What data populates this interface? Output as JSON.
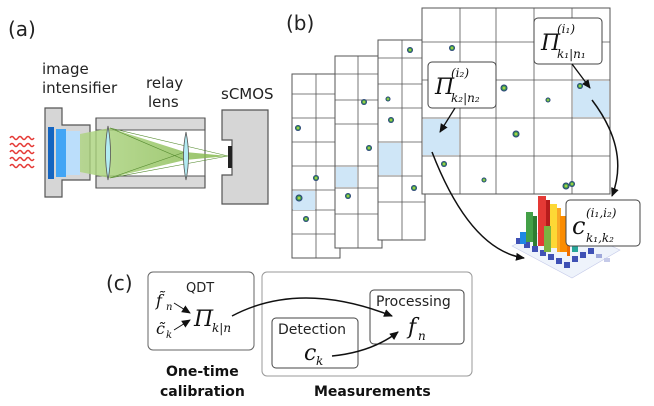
{
  "panels": {
    "a": "(a)",
    "b": "(b)",
    "c": "(c)"
  },
  "apparatus": {
    "intensifier_line1": "image",
    "intensifier_line2": "intensifier",
    "relay_line1": "relay",
    "relay_line2": "lens",
    "camera": "sCMOS"
  },
  "frames": {
    "pi_i1": {
      "base": "Π",
      "sup": "(i₁)",
      "sub": "k₁|n₁"
    },
    "pi_i2": {
      "base": "Π",
      "sup": "(i₂)",
      "sub": "k₂|n₂"
    },
    "c_label": {
      "base": "c",
      "sup": "(i₁,i₂)",
      "sub": "k₁,k₂"
    }
  },
  "flow": {
    "qdt": "QDT",
    "f_tilde": "f̃",
    "f_tilde_sub": "n",
    "c_tilde": "c̃",
    "c_tilde_sub": "k",
    "pi": "Π",
    "pi_sub": "k|n",
    "processing": "Processing",
    "f": "f",
    "f_sub": "n",
    "detection": "Detection",
    "c": "c",
    "c_sub": "k",
    "calib_line1": "One-time",
    "calib_line2": "calibration",
    "measurements": "Measurements"
  },
  "colors": {
    "highlight_cell": "#cfe6f7",
    "beam": "#8bc34a",
    "intensifier": "#2196f3",
    "light": "#e53935"
  }
}
